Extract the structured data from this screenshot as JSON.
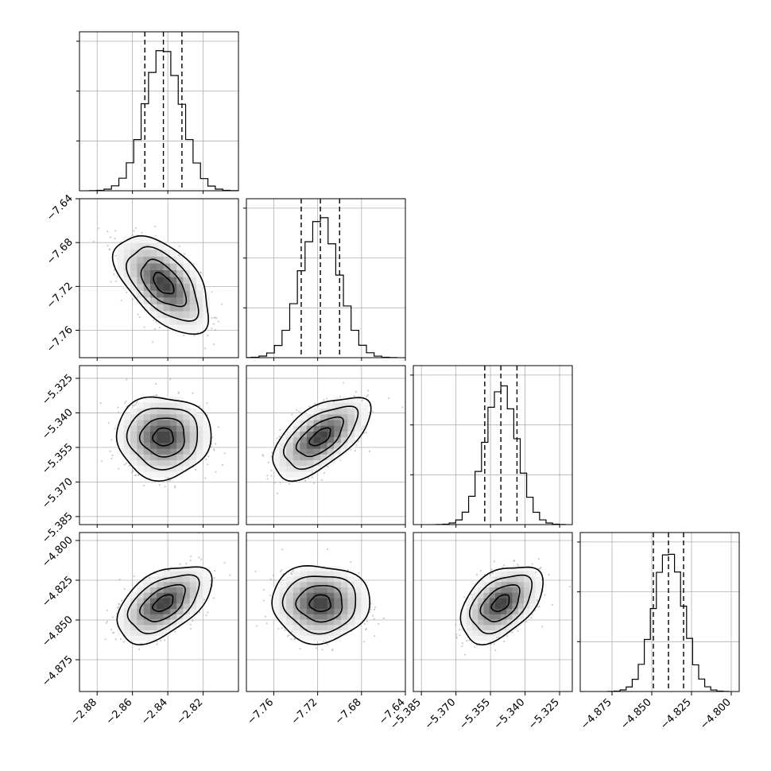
{
  "chart_data": {
    "type": "corner",
    "grid": true,
    "colors": {
      "points": "#9a9a9a",
      "density_dark": "#000000",
      "density_light": "#ffffff",
      "lines": "#000000",
      "gridlines": "#b0b0b0"
    },
    "parameters": [
      {
        "index": 0,
        "range": [
          -2.89,
          -2.8
        ],
        "ticks": [
          -2.88,
          -2.86,
          -2.84,
          -2.82
        ],
        "tick_labels": [
          "−2.88",
          "−2.86",
          "−2.84",
          "−2.82"
        ],
        "mean": -2.8425,
        "sd": 0.0105,
        "quantiles": [
          -2.853,
          -2.8425,
          -2.832
        ]
      },
      {
        "index": 1,
        "range": [
          -7.785,
          -7.64
        ],
        "ticks": [
          -7.76,
          -7.72,
          -7.68,
          -7.64
        ],
        "tick_labels": [
          "−7.76",
          "−7.72",
          "−7.68",
          "−7.64"
        ],
        "mean": -7.7175,
        "sd": 0.0175,
        "quantiles": [
          -7.735,
          -7.7175,
          -7.7
        ]
      },
      {
        "index": 2,
        "range": [
          -5.3885,
          -5.3195
        ],
        "ticks": [
          -5.385,
          -5.37,
          -5.355,
          -5.34,
          -5.325
        ],
        "tick_labels": [
          "−5.385",
          "−5.370",
          "−5.355",
          "−5.340",
          "−5.325"
        ],
        "mean": -5.3505,
        "sd": 0.007,
        "quantiles": [
          -5.3575,
          -5.3505,
          -5.3435
        ]
      },
      {
        "index": 3,
        "range": [
          -4.895,
          -4.795
        ],
        "ticks": [
          -4.875,
          -4.85,
          -4.825,
          -4.8
        ],
        "tick_labels": [
          "−4.875",
          "−4.850",
          "−4.825",
          "−4.800"
        ],
        "mean": -4.8395,
        "sd": 0.0095,
        "quantiles": [
          -4.849,
          -4.8395,
          -4.83
        ]
      }
    ],
    "correlations": [
      {
        "x": 0,
        "y": 1,
        "r": -0.55
      },
      {
        "x": 0,
        "y": 2,
        "r": 0.0
      },
      {
        "x": 1,
        "y": 2,
        "r": 0.6
      },
      {
        "x": 0,
        "y": 3,
        "r": 0.5
      },
      {
        "x": 1,
        "y": 3,
        "r": 0.0
      },
      {
        "x": 2,
        "y": 3,
        "r": 0.45
      }
    ]
  }
}
